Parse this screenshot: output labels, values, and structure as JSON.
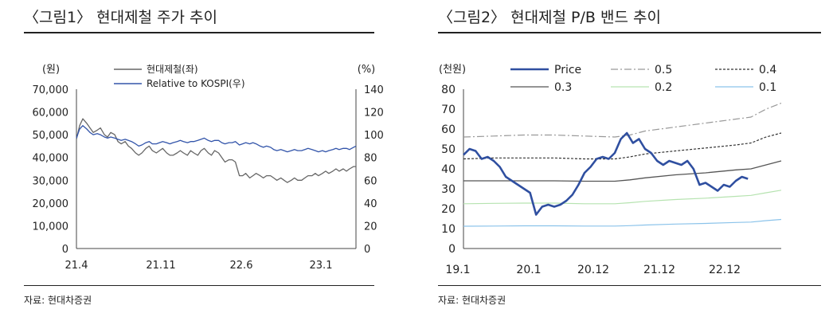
{
  "left": {
    "title": "〈그림1〉 현대제철 주가 추이",
    "source": "자료: 현대차증권"
  },
  "right": {
    "title": "〈그림2〉 현대제철 P/B 밴드 추이",
    "source": "자료: 현대차증권"
  },
  "chart_data": [
    {
      "type": "line",
      "title": "〈그림1〉 현대제철 주가 추이",
      "y_unit_left": "(원)",
      "y_unit_right": "(%)",
      "ylim_left": [
        0,
        70000
      ],
      "ylim_right": [
        0,
        140
      ],
      "yticks_left": [
        "0",
        "10,000",
        "20,000",
        "30,000",
        "40,000",
        "50,000",
        "60,000",
        "70,000"
      ],
      "yticks_right": [
        "0",
        "20",
        "40",
        "60",
        "80",
        "100",
        "120",
        "140"
      ],
      "xticks": [
        "21.4",
        "21.11",
        "22.6",
        "23.1"
      ],
      "legend": "top-left",
      "series": [
        {
          "name": "현대제철(좌)",
          "axis": "left",
          "color": "#666666",
          "x": [
            0,
            4,
            8,
            13,
            17,
            21,
            26,
            30,
            35,
            39,
            43,
            48,
            52,
            56,
            61,
            65,
            69,
            74,
            78,
            82,
            87,
            91,
            95,
            100,
            104,
            108,
            113,
            117,
            121,
            126,
            130,
            134,
            139,
            143,
            147,
            152,
            156,
            160,
            165,
            169,
            173,
            178,
            182,
            186,
            191,
            195,
            199,
            204,
            208,
            212,
            217,
            221,
            225,
            230,
            234,
            238,
            243,
            247,
            251,
            256,
            260,
            264,
            269,
            273,
            277,
            282,
            286,
            290,
            295,
            299,
            303,
            308,
            312,
            316,
            321,
            325,
            329,
            334,
            338,
            342,
            347,
            350
          ],
          "values": [
            48000,
            54000,
            57000,
            55000,
            53000,
            51000,
            52000,
            53000,
            50000,
            49000,
            51000,
            50000,
            47000,
            46000,
            47000,
            45000,
            44000,
            42000,
            41000,
            42000,
            44000,
            45000,
            43000,
            42000,
            43000,
            44000,
            42000,
            41000,
            41000,
            42000,
            43000,
            42000,
            41000,
            43000,
            42000,
            41000,
            43000,
            44000,
            42000,
            41000,
            43000,
            42000,
            40000,
            38000,
            39000,
            39000,
            38000,
            32000,
            32000,
            33000,
            31000,
            32000,
            33000,
            32000,
            31000,
            32000,
            32000,
            31000,
            30000,
            31000,
            30000,
            29000,
            30000,
            31000,
            30000,
            30000,
            31000,
            32000,
            32000,
            33000,
            32000,
            33000,
            34000,
            33000,
            34000,
            35000,
            34000,
            35000,
            34000,
            35000,
            36000,
            36000
          ]
        },
        {
          "name": "Relative to KOSPI(우)",
          "axis": "right",
          "color": "#3355aa",
          "x": [
            0,
            4,
            8,
            13,
            17,
            21,
            26,
            30,
            35,
            39,
            43,
            48,
            52,
            56,
            61,
            65,
            69,
            74,
            78,
            82,
            87,
            91,
            95,
            100,
            104,
            108,
            113,
            117,
            121,
            126,
            130,
            134,
            139,
            143,
            147,
            152,
            156,
            160,
            165,
            169,
            173,
            178,
            182,
            186,
            191,
            195,
            199,
            204,
            208,
            212,
            217,
            221,
            225,
            230,
            234,
            238,
            243,
            247,
            251,
            256,
            260,
            264,
            269,
            273,
            277,
            282,
            286,
            290,
            295,
            299,
            303,
            308,
            312,
            316,
            321,
            325,
            329,
            334,
            338,
            342,
            347,
            350
          ],
          "values": [
            97,
            105,
            108,
            105,
            102,
            100,
            101,
            100,
            98,
            97,
            98,
            97,
            96,
            95,
            96,
            95,
            94,
            92,
            90,
            91,
            93,
            94,
            92,
            92,
            93,
            94,
            93,
            92,
            93,
            94,
            95,
            94,
            93,
            94,
            94,
            95,
            96,
            97,
            95,
            94,
            95,
            95,
            93,
            92,
            93,
            93,
            94,
            91,
            92,
            93,
            92,
            93,
            92,
            90,
            89,
            90,
            89,
            87,
            86,
            87,
            86,
            85,
            86,
            87,
            86,
            86,
            87,
            88,
            87,
            86,
            85,
            86,
            85,
            86,
            87,
            88,
            87,
            88,
            88,
            87,
            89,
            90
          ]
        }
      ]
    },
    {
      "type": "line",
      "title": "〈그림2〉 현대제철 P/B 밴드 추이",
      "y_unit": "(천원)",
      "ylim": [
        0,
        80
      ],
      "yticks": [
        "0",
        "10",
        "20",
        "30",
        "40",
        "50",
        "60",
        "70",
        "80"
      ],
      "xticks": [
        "19.1",
        "20.1",
        "20.12",
        "21.12",
        "22.12"
      ],
      "legend": "top",
      "series": [
        {
          "name": "Price",
          "color": "#2f4fa0",
          "x": [
            0,
            2,
            4,
            6,
            8,
            10,
            12,
            14,
            16,
            18,
            20,
            22,
            24,
            26,
            28,
            30,
            32,
            34,
            36,
            38,
            40,
            42,
            44,
            46,
            48,
            50,
            52,
            54,
            56,
            58,
            60,
            62,
            64,
            66,
            68,
            70,
            72,
            74,
            76,
            78,
            80,
            82,
            84,
            86,
            88,
            90,
            92,
            94
          ],
          "values": [
            47,
            50,
            49,
            45,
            46,
            44,
            41,
            36,
            34,
            32,
            30,
            28,
            17,
            21,
            22,
            21,
            22,
            24,
            27,
            32,
            38,
            41,
            45,
            46,
            45,
            48,
            55,
            58,
            53,
            55,
            50,
            48,
            44,
            42,
            44,
            43,
            42,
            44,
            40,
            32,
            33,
            31,
            29,
            32,
            31,
            34,
            36,
            35
          ]
        },
        {
          "name": "0.5",
          "color": "#999999",
          "x": [
            0,
            10,
            20,
            30,
            40,
            50,
            55,
            60,
            70,
            80,
            90,
            95,
            100,
            105
          ],
          "values": [
            56,
            56.5,
            57,
            57,
            56.5,
            56,
            57,
            59,
            61,
            63,
            65,
            66,
            70,
            73
          ]
        },
        {
          "name": "0.4",
          "color": "#333333",
          "x": [
            0,
            10,
            20,
            30,
            40,
            50,
            55,
            60,
            70,
            80,
            90,
            95,
            100,
            105
          ],
          "values": [
            45,
            45.5,
            45.5,
            45.5,
            45,
            45,
            46,
            47.5,
            49,
            50.5,
            52,
            53,
            56,
            58
          ]
        },
        {
          "name": "0.3",
          "color": "#555555",
          "x": [
            0,
            10,
            20,
            30,
            40,
            50,
            55,
            60,
            70,
            80,
            90,
            95,
            100,
            105
          ],
          "values": [
            34,
            34,
            34,
            34,
            33.8,
            33.8,
            34.5,
            35.5,
            37,
            38,
            39.5,
            40,
            42,
            44
          ]
        },
        {
          "name": "0.2",
          "color": "#b6e3b0",
          "x": [
            0,
            10,
            20,
            30,
            40,
            50,
            55,
            60,
            70,
            80,
            90,
            95,
            100,
            105
          ],
          "values": [
            22.5,
            22.7,
            22.8,
            22.8,
            22.5,
            22.5,
            23,
            23.7,
            24.6,
            25.3,
            26.2,
            26.7,
            28,
            29.3
          ]
        },
        {
          "name": "0.1",
          "color": "#8bc3ea",
          "x": [
            0,
            10,
            20,
            30,
            40,
            50,
            55,
            60,
            70,
            80,
            90,
            95,
            100,
            105
          ],
          "values": [
            11.2,
            11.3,
            11.4,
            11.4,
            11.3,
            11.3,
            11.5,
            11.8,
            12.3,
            12.6,
            13.1,
            13.3,
            14,
            14.6
          ]
        }
      ]
    }
  ]
}
